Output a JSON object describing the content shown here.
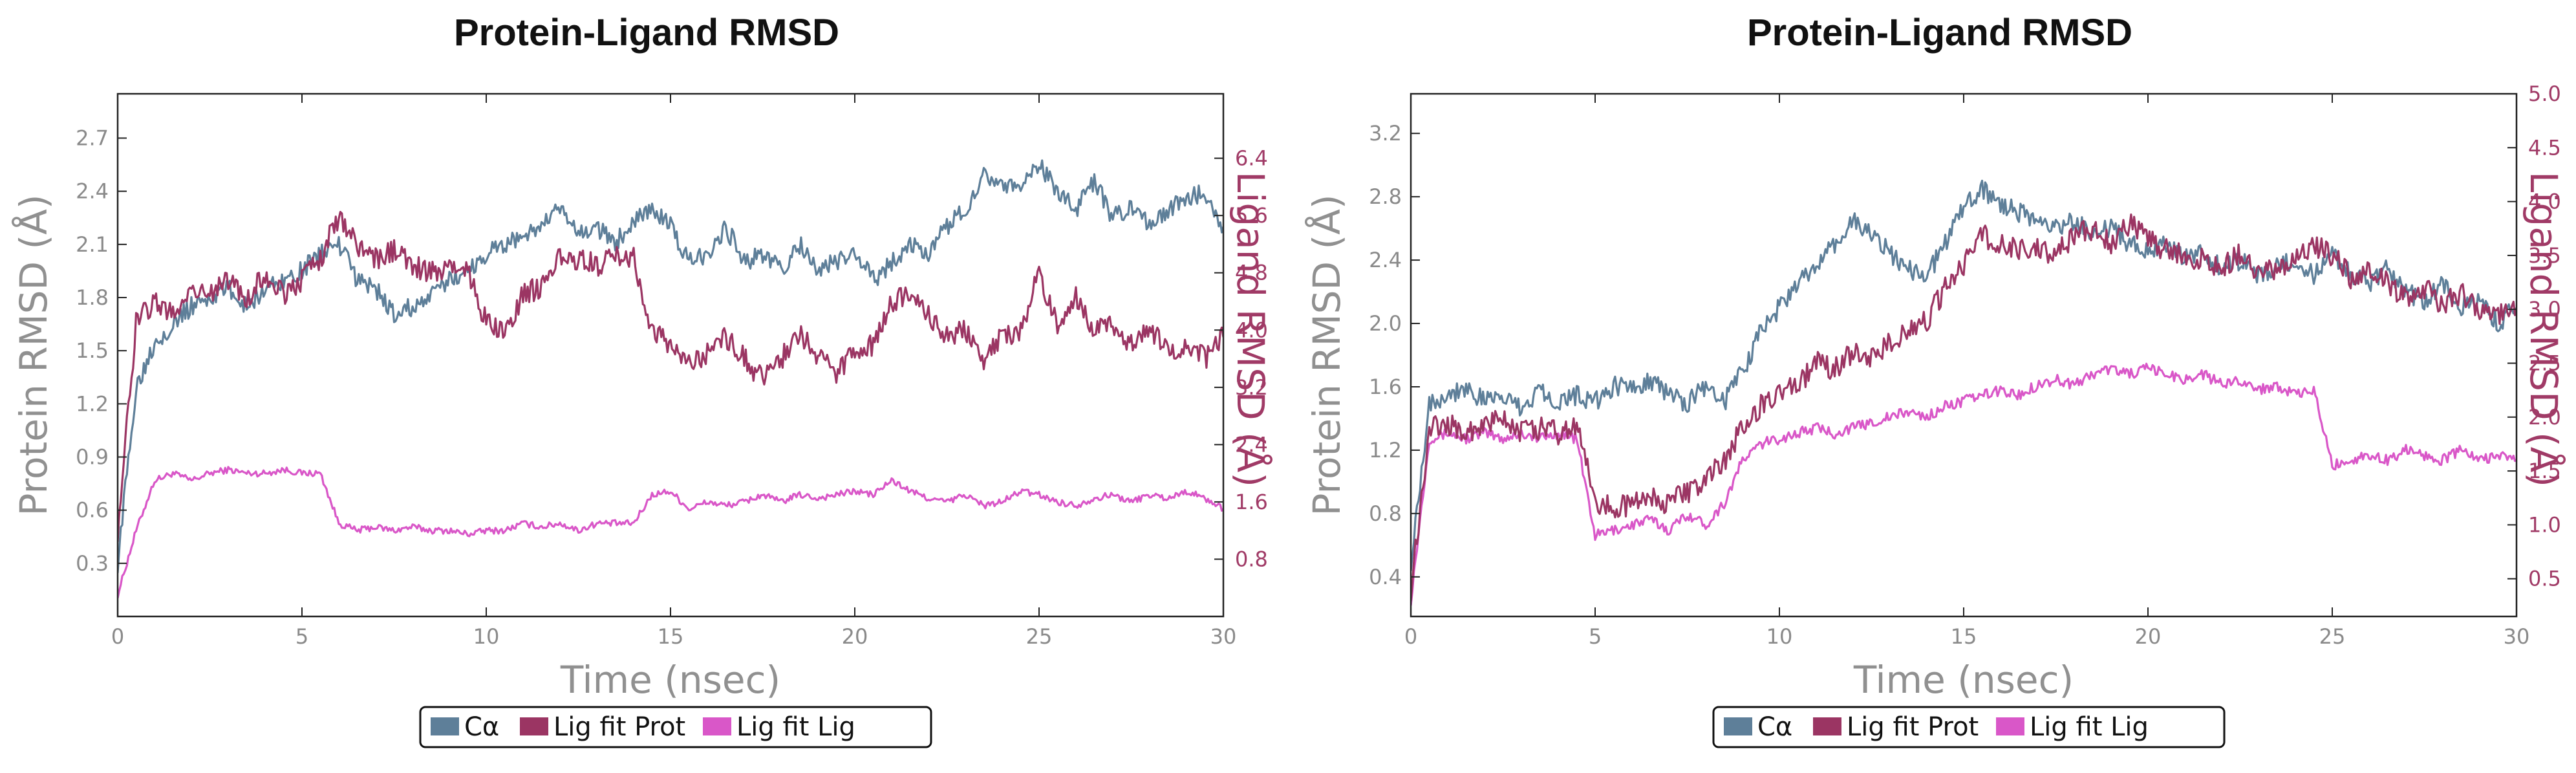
{
  "colors": {
    "ca": "#5e7f99",
    "lig_fit_prot": "#9b3563",
    "lig_fit_lig": "#d957c8",
    "axis": "#222222",
    "tick_left": "#8a8a8a",
    "tick_right": "#a03a66"
  },
  "chart_data": [
    {
      "type": "line",
      "title": "Protein-Ligand RMSD",
      "xlabel": "Time (nsec)",
      "ylabel": "Protein RMSD (Å)",
      "ylabel_right": "Ligand RMSD (Å)",
      "xlim": [
        0,
        30
      ],
      "ylim": [
        0,
        2.95
      ],
      "ylim_right": [
        0,
        7.3
      ],
      "x_ticks": [
        "0",
        "5",
        "10",
        "15",
        "20",
        "25",
        "30"
      ],
      "y_ticks": [
        "0.3",
        "0.6",
        "0.9",
        "1.2",
        "1.5",
        "1.8",
        "2.1",
        "2.4",
        "2.7"
      ],
      "y_ticks_right": [
        "0.8",
        "1.6",
        "2.4",
        "3.2",
        "4.0",
        "4.8",
        "5.6",
        "6.4"
      ],
      "legend_position": "bottom-center",
      "grid": false,
      "series": [
        {
          "name": "Cα",
          "axis": "left",
          "x": [
            0,
            0.5,
            1,
            1.5,
            2,
            2.5,
            3,
            3.5,
            4,
            4.5,
            5,
            5.5,
            6,
            6.5,
            7,
            7.5,
            8,
            8.5,
            9,
            9.5,
            10,
            10.5,
            11,
            11.5,
            12,
            12.5,
            13,
            13.5,
            14,
            14.5,
            15,
            15.5,
            16,
            16.5,
            17,
            17.5,
            18,
            18.5,
            19,
            19.5,
            20,
            20.5,
            21,
            21.5,
            22,
            22.5,
            23,
            23.5,
            24,
            24.5,
            25,
            25.5,
            26,
            26.5,
            27,
            27.5,
            28,
            28.5,
            29,
            29.5,
            30
          ],
          "values": [
            0.3,
            1.3,
            1.55,
            1.65,
            1.75,
            1.8,
            1.85,
            1.75,
            1.85,
            1.9,
            1.95,
            2.05,
            2.1,
            1.9,
            1.85,
            1.7,
            1.75,
            1.8,
            1.9,
            1.95,
            2.05,
            2.1,
            2.15,
            2.2,
            2.3,
            2.15,
            2.2,
            2.1,
            2.25,
            2.3,
            2.2,
            2.0,
            2.05,
            2.2,
            2.0,
            2.05,
            1.95,
            2.1,
            1.95,
            2.0,
            2.05,
            1.9,
            2.0,
            2.1,
            2.05,
            2.2,
            2.3,
            2.5,
            2.45,
            2.4,
            2.55,
            2.4,
            2.3,
            2.45,
            2.25,
            2.3,
            2.2,
            2.3,
            2.35,
            2.4,
            2.2
          ]
        },
        {
          "name": "Lig fit Prot",
          "axis": "right",
          "x": [
            0,
            0.5,
            1,
            1.5,
            2,
            2.5,
            3,
            3.5,
            4,
            4.5,
            5,
            5.5,
            6,
            6.5,
            7,
            7.5,
            8,
            8.5,
            9,
            9.5,
            10,
            10.5,
            11,
            11.5,
            12,
            12.5,
            13,
            13.5,
            14,
            14.5,
            15,
            15.5,
            16,
            16.5,
            17,
            17.5,
            18,
            18.5,
            19,
            19.5,
            20,
            20.5,
            21,
            21.5,
            22,
            22.5,
            23,
            23.5,
            24,
            24.5,
            25,
            25.5,
            26,
            26.5,
            27,
            27.5,
            28,
            28.5,
            29,
            29.5,
            30
          ],
          "values": [
            1.2,
            4.1,
            4.4,
            4.2,
            4.6,
            4.5,
            4.7,
            4.4,
            4.8,
            4.5,
            4.7,
            5.0,
            5.6,
            5.2,
            5.0,
            5.1,
            4.9,
            4.8,
            4.9,
            4.8,
            4.1,
            4.0,
            4.5,
            4.6,
            5.0,
            5.0,
            4.9,
            5.0,
            5.0,
            4.0,
            3.8,
            3.5,
            3.7,
            3.9,
            3.6,
            3.3,
            3.6,
            4.0,
            3.6,
            3.4,
            3.7,
            3.8,
            4.4,
            4.5,
            4.2,
            3.9,
            4.0,
            3.6,
            3.9,
            4.0,
            4.8,
            4.1,
            4.5,
            4.0,
            4.1,
            3.8,
            4.0,
            3.7,
            3.8,
            3.6,
            3.9
          ]
        },
        {
          "name": "Lig fit Lig",
          "axis": "right",
          "x": [
            0,
            0.5,
            1,
            1.5,
            2,
            2.5,
            3,
            3.5,
            4,
            4.5,
            5,
            5.5,
            6,
            6.5,
            7,
            7.5,
            8,
            8.5,
            9,
            9.5,
            10,
            10.5,
            11,
            11.5,
            12,
            12.5,
            13,
            13.5,
            14,
            14.5,
            15,
            15.5,
            16,
            16.5,
            17,
            17.5,
            18,
            18.5,
            19,
            19.5,
            20,
            20.5,
            21,
            21.5,
            22,
            22.5,
            23,
            23.5,
            24,
            24.5,
            25,
            25.5,
            26,
            26.5,
            27,
            27.5,
            28,
            28.5,
            29,
            29.5,
            30
          ],
          "values": [
            0.3,
            1.2,
            1.9,
            2.0,
            1.9,
            2.0,
            2.05,
            2.0,
            2.0,
            2.05,
            2.0,
            2.0,
            1.3,
            1.2,
            1.25,
            1.2,
            1.25,
            1.2,
            1.2,
            1.15,
            1.2,
            1.2,
            1.3,
            1.25,
            1.3,
            1.2,
            1.3,
            1.3,
            1.3,
            1.7,
            1.75,
            1.5,
            1.6,
            1.55,
            1.6,
            1.7,
            1.6,
            1.7,
            1.65,
            1.7,
            1.75,
            1.7,
            1.9,
            1.75,
            1.65,
            1.6,
            1.7,
            1.55,
            1.6,
            1.75,
            1.7,
            1.6,
            1.55,
            1.65,
            1.7,
            1.6,
            1.7,
            1.65,
            1.75,
            1.65,
            1.5
          ]
        }
      ]
    },
    {
      "type": "line",
      "title": "Protein-Ligand RMSD",
      "xlabel": "Time (nsec)",
      "ylabel": "Protein RMSD (Å)",
      "ylabel_right": "Ligand RMSD (Å)",
      "xlim": [
        0,
        30
      ],
      "ylim": [
        0.15,
        3.45
      ],
      "ylim_right": [
        0.15,
        5.0
      ],
      "x_ticks": [
        "0",
        "5",
        "10",
        "15",
        "20",
        "25",
        "30"
      ],
      "y_ticks": [
        "0.4",
        "0.8",
        "1.2",
        "1.6",
        "2.0",
        "2.4",
        "2.8",
        "3.2"
      ],
      "y_ticks_right": [
        "0.5",
        "1.0",
        "1.5",
        "2.0",
        "2.5",
        "3.0",
        "3.5",
        "4.0",
        "4.5",
        "5.0"
      ],
      "legend_position": "bottom-center",
      "grid": false,
      "series": [
        {
          "name": "Cα",
          "axis": "left",
          "x": [
            0,
            0.5,
            1,
            1.5,
            2,
            2.5,
            3,
            3.5,
            4,
            4.5,
            5,
            5.5,
            6,
            6.5,
            7,
            7.5,
            8,
            8.5,
            9,
            9.5,
            10,
            10.5,
            11,
            11.5,
            12,
            12.5,
            13,
            13.5,
            14,
            14.5,
            15,
            15.5,
            16,
            16.5,
            17,
            17.5,
            18,
            18.5,
            19,
            19.5,
            20,
            20.5,
            21,
            21.5,
            22,
            22.5,
            23,
            23.5,
            24,
            24.5,
            25,
            25.5,
            26,
            26.5,
            27,
            27.5,
            28,
            28.5,
            29,
            29.5,
            30
          ],
          "values": [
            0.5,
            1.5,
            1.55,
            1.6,
            1.5,
            1.55,
            1.45,
            1.6,
            1.5,
            1.55,
            1.5,
            1.6,
            1.6,
            1.65,
            1.55,
            1.5,
            1.6,
            1.5,
            1.7,
            1.95,
            2.1,
            2.25,
            2.35,
            2.5,
            2.65,
            2.55,
            2.45,
            2.35,
            2.3,
            2.5,
            2.75,
            2.85,
            2.75,
            2.7,
            2.65,
            2.6,
            2.65,
            2.55,
            2.6,
            2.5,
            2.45,
            2.5,
            2.4,
            2.45,
            2.35,
            2.4,
            2.3,
            2.35,
            2.4,
            2.3,
            2.45,
            2.3,
            2.25,
            2.35,
            2.2,
            2.15,
            2.25,
            2.1,
            2.15,
            2.0,
            2.1
          ]
        },
        {
          "name": "Lig fit Prot",
          "axis": "right",
          "x": [
            0,
            0.5,
            1,
            1.5,
            2,
            2.5,
            3,
            3.5,
            4,
            4.5,
            5,
            5.5,
            6,
            6.5,
            7,
            7.5,
            8,
            8.5,
            9,
            9.5,
            10,
            10.5,
            11,
            11.5,
            12,
            12.5,
            13,
            13.5,
            14,
            14.5,
            15,
            15.5,
            16,
            16.5,
            17,
            17.5,
            18,
            18.5,
            19,
            19.5,
            20,
            20.5,
            21,
            21.5,
            22,
            22.5,
            23,
            23.5,
            24,
            24.5,
            25,
            25.5,
            26,
            26.5,
            27,
            27.5,
            28,
            28.5,
            29,
            29.5,
            30
          ],
          "values": [
            0.4,
            1.9,
            1.95,
            1.85,
            1.9,
            2.0,
            1.85,
            1.9,
            1.85,
            1.95,
            1.2,
            1.15,
            1.2,
            1.25,
            1.2,
            1.3,
            1.4,
            1.6,
            1.9,
            2.1,
            2.2,
            2.3,
            2.5,
            2.45,
            2.6,
            2.55,
            2.7,
            2.8,
            2.9,
            3.2,
            3.4,
            3.7,
            3.6,
            3.55,
            3.6,
            3.5,
            3.7,
            3.75,
            3.6,
            3.8,
            3.65,
            3.55,
            3.5,
            3.45,
            3.4,
            3.5,
            3.3,
            3.4,
            3.45,
            3.6,
            3.5,
            3.3,
            3.4,
            3.25,
            3.1,
            3.2,
            3.05,
            3.15,
            3.0,
            2.95,
            3.0
          ]
        },
        {
          "name": "Lig fit Lig",
          "axis": "right",
          "x": [
            0,
            0.5,
            1,
            1.5,
            2,
            2.5,
            3,
            3.5,
            4,
            4.5,
            5,
            5.5,
            6,
            6.5,
            7,
            7.5,
            8,
            8.5,
            9,
            9.5,
            10,
            10.5,
            11,
            11.5,
            12,
            12.5,
            13,
            13.5,
            14,
            14.5,
            15,
            15.5,
            16,
            16.5,
            17,
            17.5,
            18,
            18.5,
            19,
            19.5,
            20,
            20.5,
            21,
            21.5,
            22,
            22.5,
            23,
            23.5,
            24,
            24.5,
            25,
            25.5,
            26,
            26.5,
            27,
            27.5,
            28,
            28.5,
            29,
            29.5,
            30
          ],
          "values": [
            0.3,
            1.8,
            1.85,
            1.8,
            1.85,
            1.8,
            1.85,
            1.8,
            1.85,
            1.8,
            0.9,
            0.95,
            1.0,
            1.05,
            0.95,
            1.1,
            1.0,
            1.2,
            1.6,
            1.75,
            1.8,
            1.85,
            1.9,
            1.85,
            1.9,
            1.95,
            2.0,
            2.05,
            2.0,
            2.1,
            2.15,
            2.2,
            2.25,
            2.2,
            2.3,
            2.35,
            2.3,
            2.4,
            2.45,
            2.4,
            2.45,
            2.4,
            2.35,
            2.4,
            2.3,
            2.35,
            2.25,
            2.3,
            2.2,
            2.25,
            1.55,
            1.6,
            1.65,
            1.6,
            1.7,
            1.65,
            1.6,
            1.7,
            1.6,
            1.65,
            1.6
          ]
        }
      ]
    }
  ]
}
